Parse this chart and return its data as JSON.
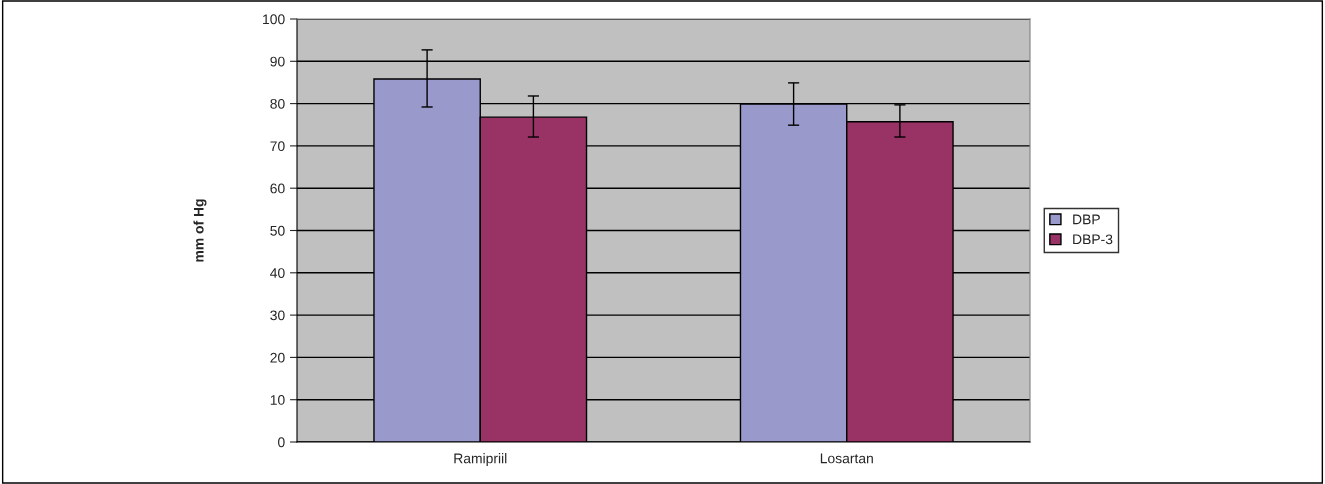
{
  "chart_data": {
    "type": "bar",
    "ylabel": "mm of Hg",
    "categories": [
      "Ramipriil",
      "Losartan"
    ],
    "series": [
      {
        "name": "DBP",
        "color": "#9999cc",
        "values": [
          85.8,
          79.9
        ],
        "errors": [
          [
            79.2,
            92.7
          ],
          [
            74.9,
            84.9
          ]
        ]
      },
      {
        "name": "DBP-3",
        "color": "#993366",
        "values": [
          76.8,
          75.7
        ],
        "errors": [
          [
            72.1,
            81.8
          ],
          [
            72.1,
            79.7
          ]
        ]
      }
    ],
    "ylim": [
      0,
      100
    ],
    "yticks": [
      0,
      10,
      20,
      30,
      40,
      50,
      60,
      70,
      80,
      90,
      100
    ],
    "grid": "y",
    "legend": "right"
  }
}
